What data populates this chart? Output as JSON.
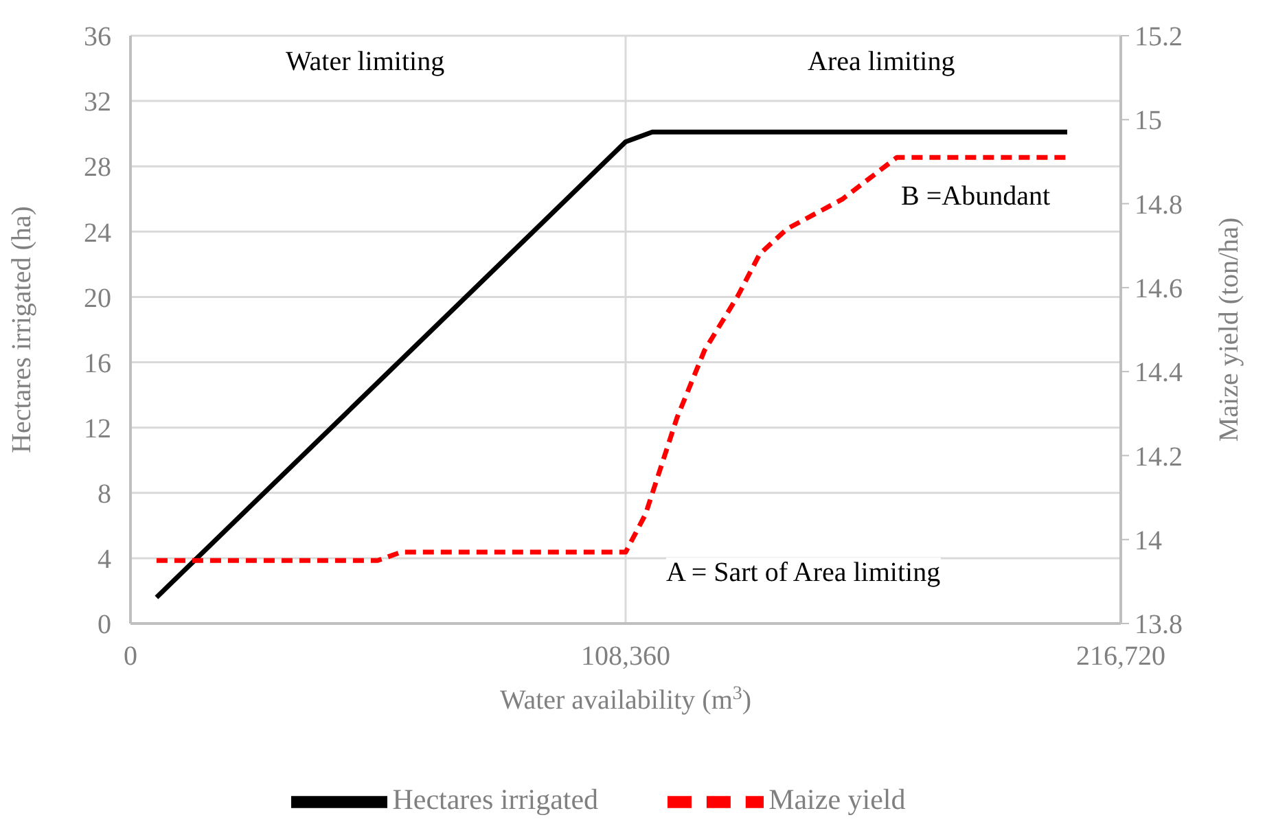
{
  "chart_data": {
    "type": "line",
    "xlabel": "Water availability (m$^{3}$)",
    "ylabel": "Hectares irrigated (ha)",
    "y2label": "Maize yield (ton/ha)",
    "annotations": [
      "Water limiting",
      "Area limiting",
      "B =Abundant",
      "A = Sart of Area limiting"
    ],
    "xlim": [
      0,
      216720
    ],
    "xticks": [
      0,
      {
        "value": 108360,
        "label": "108,360"
      },
      {
        "value": 216720,
        "label": "216,720"
      }
    ],
    "ylim": [
      0,
      36
    ],
    "yticks": [
      0,
      4,
      8,
      12,
      16,
      20,
      24,
      28,
      32,
      36
    ],
    "y2lim": [
      13.8,
      15.2
    ],
    "y2ticks": [
      13.8,
      14,
      14.2,
      14.4,
      14.6,
      14.8,
      15,
      15.2
    ],
    "grid": true,
    "legend": "bottom",
    "marker": "none",
    "series": [
      {
        "name": "Hectares irrigated",
        "color": "#000000",
        "line_style": "solid",
        "x": [
          5700,
          108360,
          114200,
          205000
        ],
        "values": [
          1.6,
          29.5,
          30.1,
          30.1
        ]
      },
      {
        "name": "Maize yield",
        "color": "#ff0000",
        "line_style": "dashed",
        "axis": "y2",
        "x": [
          5700,
          54100,
          59200,
          108360,
          112700,
          119600,
          125600,
          132900,
          137700,
          143700,
          155700,
          167700,
          205000
        ],
        "values": [
          13.95,
          13.95,
          13.97,
          13.97,
          14.06,
          14.29,
          14.45,
          14.58,
          14.68,
          14.74,
          14.81,
          14.91,
          14.91
        ]
      }
    ]
  }
}
